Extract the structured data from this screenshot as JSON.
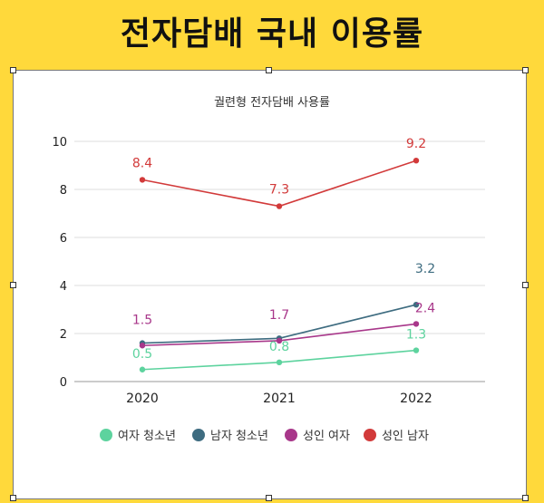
{
  "header": {
    "title": "전자담배 국내 이용률"
  },
  "chart_data": {
    "type": "line",
    "title": "궐련형 전자담배 사용률",
    "categories": [
      "2020",
      "2021",
      "2022"
    ],
    "ylim": [
      0,
      10
    ],
    "yticks": [
      0,
      2,
      4,
      6,
      8,
      10
    ],
    "grid": true,
    "legend": "bottom",
    "series": [
      {
        "name": "여자 청소년",
        "color": "#5DD39E",
        "values": [
          0.5,
          0.8,
          1.3
        ],
        "labels": [
          "0.5",
          "0.8",
          "1.3"
        ]
      },
      {
        "name": "남자 청소년",
        "color": "#3E6C80",
        "values": [
          1.6,
          1.8,
          3.2
        ],
        "labels": [
          "",
          "",
          "3.2"
        ]
      },
      {
        "name": "성인 여자",
        "color": "#A8378A",
        "values": [
          1.5,
          1.7,
          2.4
        ],
        "labels": [
          "1.5",
          "1.7",
          "2.4"
        ]
      },
      {
        "name": "성인 남자",
        "color": "#D23A3A",
        "values": [
          8.4,
          7.3,
          9.2
        ],
        "labels": [
          "8.4",
          "7.3",
          "9.2"
        ]
      }
    ]
  }
}
